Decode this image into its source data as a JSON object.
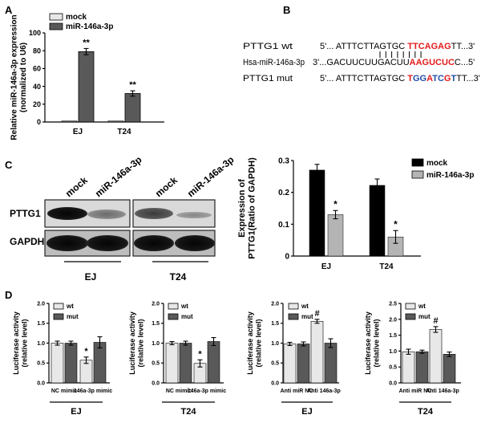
{
  "panel_labels": {
    "a": "A",
    "b": "B",
    "c": "C",
    "d": "D"
  },
  "colors": {
    "mock": "#e8e8e8",
    "mir": "#595959",
    "black": "#000000",
    "grey": "#b4b4b4",
    "red": "#e31b1b",
    "blue": "#1f4fa8"
  },
  "chart_data": [
    {
      "id": "A",
      "type": "bar",
      "ylabel": "Relative miR-146a-3p expression (normalized to U6)",
      "ylabel_lines": [
        "Relative miR-146a-3p expression",
        "(normalized to U6)"
      ],
      "categories": [
        "EJ",
        "T24"
      ],
      "ylim": [
        0,
        100
      ],
      "yticks": [
        "0",
        "20",
        "40",
        "60",
        "80",
        "100"
      ],
      "series": [
        {
          "name": "mock",
          "values": [
            1,
            1
          ],
          "errors": [
            0,
            0
          ]
        },
        {
          "name": "miR-146a-3p",
          "values": [
            79,
            32
          ],
          "errors": [
            3.5,
            3
          ]
        }
      ],
      "annotations": [
        "**",
        "**"
      ],
      "legend": "top-left"
    },
    {
      "id": "C",
      "type": "bar",
      "ylabel": "Expression of PTTG1(Ratio of GAPDH)",
      "ylabel_lines": [
        "Expression of",
        "PTTG1(Ratio of GAPDH)"
      ],
      "categories": [
        "EJ",
        "T24"
      ],
      "ylim": [
        0,
        0.3
      ],
      "yticks": [
        "0",
        "0.1",
        "0.2",
        "0.3"
      ],
      "series": [
        {
          "name": "mock",
          "values": [
            0.27,
            0.222
          ],
          "errors": [
            0.018,
            0.02
          ]
        },
        {
          "name": "miR-146a-3p",
          "values": [
            0.13,
            0.06
          ],
          "errors": [
            0.013,
            0.02
          ]
        }
      ],
      "annotations": [
        "*",
        "*"
      ],
      "legend": "top-right"
    },
    {
      "id": "D1",
      "type": "bar",
      "ylabel": "Luciferase activity (relative level)",
      "ylabel_lines": [
        "Luciferase activity",
        "(relative level)"
      ],
      "categories": [
        "NC mimic",
        "146a-3p mimic"
      ],
      "group_label": "EJ",
      "ylim": [
        0,
        2.0
      ],
      "yticks": [
        "0.0",
        "0.5",
        "1.0",
        "1.5",
        "2.0"
      ],
      "series": [
        {
          "name": "wt",
          "values": [
            1.0,
            0.57
          ],
          "errors": [
            0.05,
            0.08
          ]
        },
        {
          "name": "mut",
          "values": [
            1.0,
            1.02
          ],
          "errors": [
            0.05,
            0.14
          ]
        }
      ],
      "annotations": [
        "",
        "*"
      ],
      "legend": "top-left"
    },
    {
      "id": "D2",
      "type": "bar",
      "ylabel": "Luciferase activity (relative level)",
      "ylabel_lines": [
        "Luciferase activity",
        "(relative level)"
      ],
      "categories": [
        "NC mimic",
        "146a-3p mimic"
      ],
      "group_label": "T24",
      "ylim": [
        0,
        2.0
      ],
      "yticks": [
        "0.0",
        "0.5",
        "1.0",
        "1.5",
        "2.0"
      ],
      "series": [
        {
          "name": "wt",
          "values": [
            1.0,
            0.49
          ],
          "errors": [
            0.04,
            0.09
          ]
        },
        {
          "name": "mut",
          "values": [
            1.0,
            1.04
          ],
          "errors": [
            0.05,
            0.1
          ]
        }
      ],
      "annotations": [
        "",
        "*"
      ],
      "legend": "top-left"
    },
    {
      "id": "D3",
      "type": "bar",
      "ylabel": "Luciferase activity (relative level)",
      "ylabel_lines": [
        "Luciferase activity",
        "(relative level)"
      ],
      "categories": [
        "Anti miR NC",
        "Anti 146a-3p"
      ],
      "group_label": "EJ",
      "ylim": [
        0,
        2.0
      ],
      "yticks": [
        "0.0",
        "0.5",
        "1.0",
        "1.5",
        "2.0"
      ],
      "series": [
        {
          "name": "wt",
          "values": [
            0.98,
            1.55
          ],
          "errors": [
            0.04,
            0.05
          ]
        },
        {
          "name": "mut",
          "values": [
            0.98,
            1.0
          ],
          "errors": [
            0.05,
            0.11
          ]
        }
      ],
      "annotations": [
        "",
        "#"
      ],
      "legend": "top-left"
    },
    {
      "id": "D4",
      "type": "bar",
      "ylabel": "Luciferase activity (relative level)",
      "ylabel_lines": [
        "Luciferase activity",
        "(relative level)"
      ],
      "categories": [
        "Anti miR NC",
        "Anti 146a-3p"
      ],
      "group_label": "T24",
      "ylim": [
        0,
        2.5
      ],
      "yticks": [
        "0.0",
        "0.5",
        "1.0",
        "1.5",
        "2.0",
        "2.5"
      ],
      "series": [
        {
          "name": "wt",
          "values": [
            0.98,
            1.68
          ],
          "errors": [
            0.08,
            0.09
          ]
        },
        {
          "name": "mut",
          "values": [
            0.98,
            0.9
          ],
          "errors": [
            0.05,
            0.07
          ]
        }
      ],
      "annotations": [
        "",
        "#"
      ],
      "legend": "top-left"
    }
  ],
  "panel_b": {
    "rows": [
      {
        "label": "PTTG1 wt",
        "prefix": "5'... ATTTCTTAGTGC ",
        "segments": [
          [
            "TTCAGAG",
            "red"
          ]
        ],
        "suffix": "TT...3'"
      },
      {
        "label": "Hsa-miR-146a-3p",
        "prefix": "3'...GACUUCUUGACUU",
        "segments": [
          [
            "AAGUCUC",
            "red"
          ]
        ],
        "suffix": "C...5'"
      },
      {
        "label": "PTTG1 mut",
        "prefix": "5'... ATTTCTTAGTGC ",
        "segments": [
          [
            "T",
            "red"
          ],
          [
            "GG",
            "blue"
          ],
          [
            "A",
            "red"
          ],
          [
            "TC",
            "blue"
          ],
          [
            "G",
            "red"
          ],
          [
            "T",
            "blue"
          ]
        ],
        "suffix": "TT...3'"
      }
    ]
  },
  "blot": {
    "columns": [
      "mock",
      "miR-146a-3p",
      "mock",
      "miR-146a-3p"
    ],
    "rows": [
      "PTTG1",
      "GAPDH"
    ],
    "groups": [
      "EJ",
      "T24"
    ]
  }
}
